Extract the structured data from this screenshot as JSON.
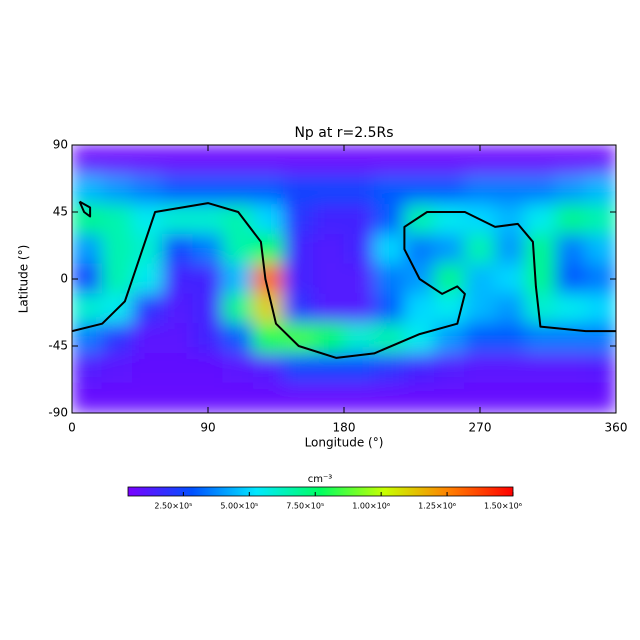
{
  "chart_data": {
    "type": "heatmap",
    "title": "Np at r=2.5Rs",
    "x_label": "Longitude (°)",
    "y_label": "Latitude (°)",
    "xlim": [
      0,
      360
    ],
    "xticks": [
      0,
      90,
      180,
      270,
      360
    ],
    "ylim": [
      -90,
      90
    ],
    "yticks": [
      -90,
      -45,
      0,
      45,
      90
    ],
    "x": [
      10,
      30,
      50,
      70,
      90,
      110,
      130,
      150,
      170,
      190,
      210,
      230,
      250,
      270,
      290,
      310,
      330,
      350
    ],
    "y": [
      80,
      60,
      40,
      20,
      0,
      -20,
      -40,
      -60,
      -80
    ],
    "z": [
      [
        70000,
        70000,
        70000,
        70000,
        70000,
        70000,
        70000,
        70000,
        70000,
        70000,
        70000,
        70000,
        70000,
        70000,
        70000,
        70000,
        70000,
        70000
      ],
      [
        450000,
        400000,
        350000,
        300000,
        300000,
        300000,
        300000,
        250000,
        250000,
        250000,
        300000,
        300000,
        300000,
        350000,
        350000,
        350000,
        400000,
        450000
      ],
      [
        700000,
        650000,
        550000,
        600000,
        600000,
        650000,
        500000,
        200000,
        150000,
        150000,
        300000,
        650000,
        550000,
        500000,
        450000,
        550000,
        700000,
        650000
      ],
      [
        400000,
        650000,
        600000,
        250000,
        350000,
        650000,
        750000,
        150000,
        120000,
        150000,
        500000,
        350000,
        400000,
        650000,
        400000,
        700000,
        350000,
        450000
      ],
      [
        250000,
        650000,
        550000,
        150000,
        150000,
        450000,
        1300000,
        150000,
        120000,
        120000,
        350000,
        400000,
        700000,
        450000,
        500000,
        700000,
        300000,
        350000
      ],
      [
        600000,
        550000,
        200000,
        120000,
        150000,
        700000,
        1100000,
        200000,
        120000,
        120000,
        300000,
        500000,
        550000,
        450000,
        400000,
        600000,
        550000,
        500000
      ],
      [
        350000,
        200000,
        100000,
        100000,
        150000,
        300000,
        800000,
        850000,
        750000,
        600000,
        650000,
        550000,
        400000,
        300000,
        300000,
        350000,
        350000,
        350000
      ],
      [
        120000,
        100000,
        90000,
        90000,
        90000,
        100000,
        120000,
        250000,
        250000,
        250000,
        200000,
        150000,
        120000,
        100000,
        100000,
        100000,
        100000,
        110000
      ],
      [
        80000,
        80000,
        80000,
        80000,
        80000,
        80000,
        80000,
        80000,
        80000,
        80000,
        80000,
        80000,
        80000,
        80000,
        80000,
        80000,
        80000,
        80000
      ]
    ],
    "colormap": [
      "#7a00ff",
      "#0050ff",
      "#00e8ff",
      "#00ff60",
      "#c8ff00",
      "#ff8000",
      "#ff0000"
    ],
    "colorbar": {
      "label": "cm⁻³",
      "lim": [
        40000,
        1500000
      ],
      "ticks": [
        {
          "value": 250000,
          "label": "2.50×10⁵"
        },
        {
          "value": 500000,
          "label": "5.00×10⁵"
        },
        {
          "value": 750000,
          "label": "7.50×10⁵"
        },
        {
          "value": 1000000,
          "label": "1.00×10⁶"
        },
        {
          "value": 1250000,
          "label": "1.25×10⁶"
        },
        {
          "value": 1500000,
          "label": "1.50×10⁶"
        }
      ]
    },
    "contours": [
      {
        "color": "#000000",
        "x": [
          0,
          20,
          35,
          45,
          55,
          90,
          110,
          125,
          128,
          135,
          150,
          175,
          200,
          230,
          255,
          260,
          255,
          245,
          230,
          220,
          220,
          235,
          260,
          280,
          295,
          305,
          307,
          310,
          340,
          360
        ],
        "y": [
          -35,
          -30,
          -15,
          15,
          45,
          51,
          45,
          25,
          0,
          -30,
          -45,
          -53,
          -50,
          -37,
          -30,
          -10,
          -5,
          -10,
          0,
          20,
          35,
          45,
          45,
          35,
          37,
          25,
          -5,
          -32,
          -35,
          -35
        ]
      },
      {
        "color": "#000000",
        "x": [
          5,
          12,
          12,
          8,
          5
        ],
        "y": [
          52,
          48,
          42,
          45,
          52
        ]
      }
    ]
  }
}
